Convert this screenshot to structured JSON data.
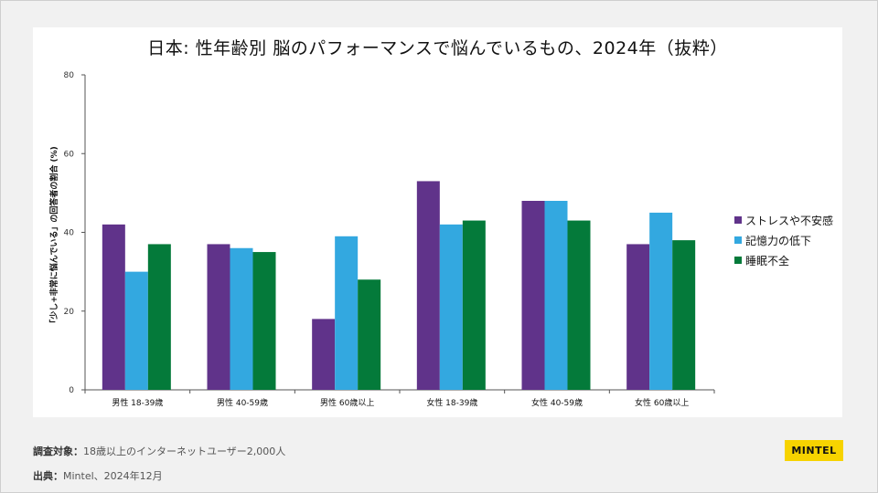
{
  "chart_data": {
    "type": "bar",
    "title": "日本: 性年齢別  脳のパフォーマンスで悩んでいるもの、2024年（抜粋）",
    "ylabel": "「少し+非常に悩んでいる」の回答者の割合 (%)",
    "xlabel": "",
    "ylim": [
      0,
      80
    ],
    "yticks": [
      0,
      20,
      40,
      60,
      80
    ],
    "categories": [
      "男性 18-39歳",
      "男性 40-59歳",
      "男性 60歳以上",
      "女性 18-39歳",
      "女性 40-59歳",
      "女性 60歳以上"
    ],
    "series": [
      {
        "name": "ストレスや不安感",
        "color": "#60338a",
        "values": [
          42,
          37,
          18,
          53,
          48,
          37
        ]
      },
      {
        "name": "記憶力の低下",
        "color": "#33a8e0",
        "values": [
          30,
          36,
          39,
          42,
          48,
          45
        ]
      },
      {
        "name": "睡眠不全",
        "color": "#047a3a",
        "values": [
          37,
          35,
          28,
          43,
          43,
          38
        ]
      }
    ],
    "legend_position": "right"
  },
  "footer": {
    "survey_label": "調査対象：",
    "survey_value": "18歳以上のインターネットユーザー2,000人",
    "source_label": "出典：",
    "source_value": "Mintel、2024年12月"
  },
  "logo": {
    "text": "MINTEL"
  }
}
